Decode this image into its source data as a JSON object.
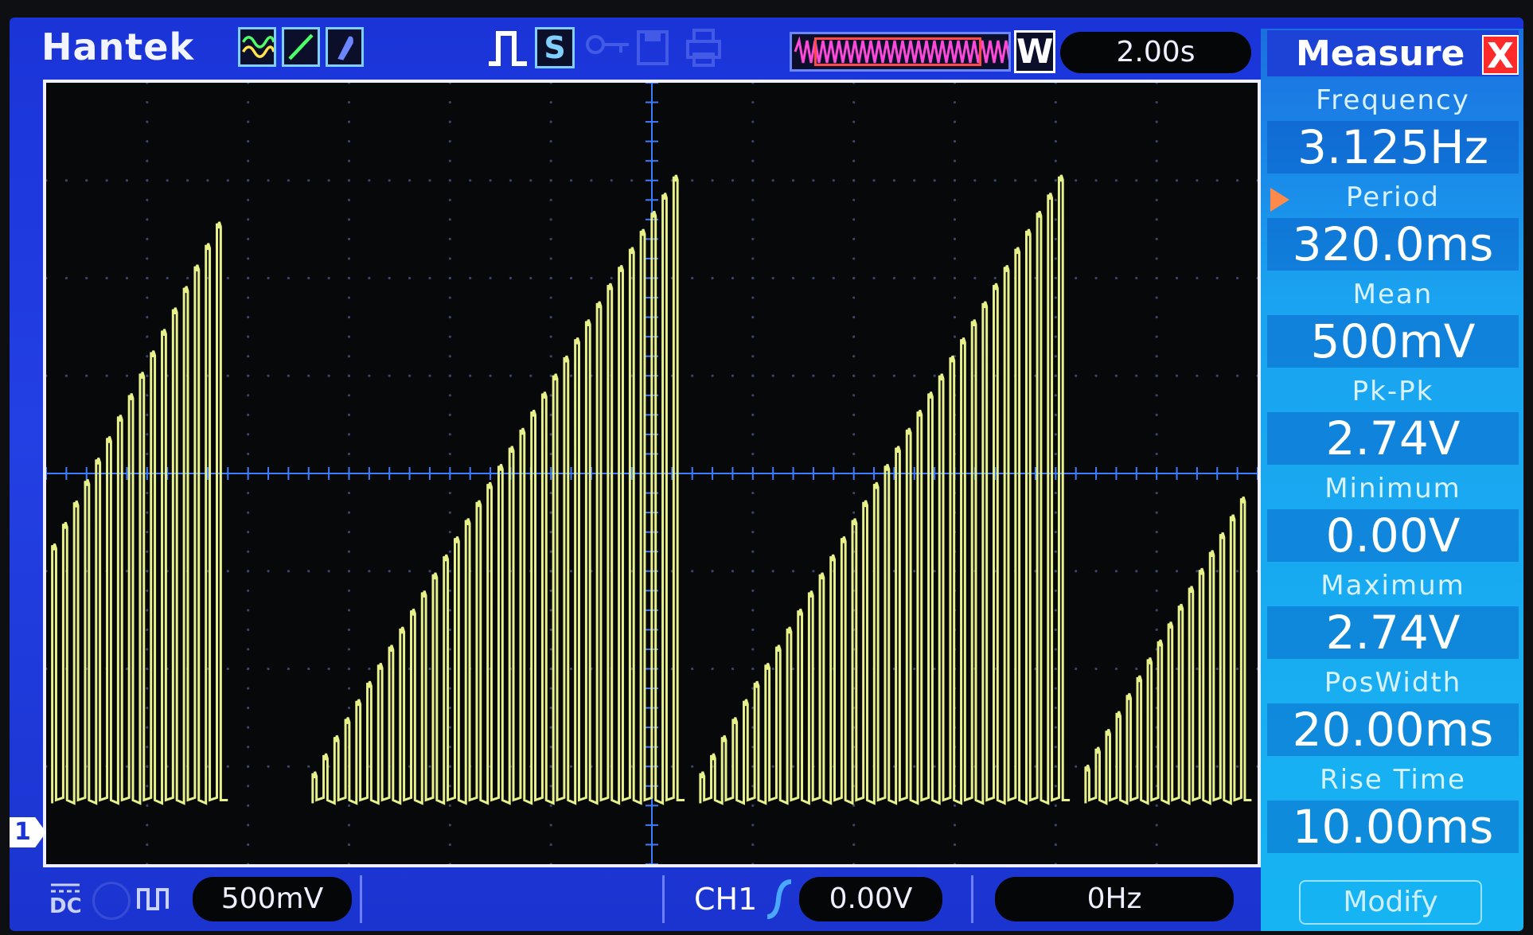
{
  "brand": "Hantek",
  "topbar": {
    "s_label": "S",
    "w_label": "W",
    "timebase": "2.00s"
  },
  "icons": {
    "waveform": "sine-wave-icon",
    "cursor": "line-cursor-icon",
    "probe": "probe-icon",
    "trigger": "pulse-trigger-icon",
    "key": "key-icon",
    "save": "save-icon",
    "print": "print-icon"
  },
  "colors": {
    "screen": "#2340e4",
    "trace": "#e8f08a",
    "grid": "#3a4466",
    "axis": "#3d7cff",
    "close": "#ff2a2a"
  },
  "measure": {
    "title": "Measure",
    "close_label": "X",
    "items": [
      {
        "label": "Frequency",
        "value": "3.125Hz"
      },
      {
        "label": "Period",
        "value": "320.0ms"
      },
      {
        "label": "Mean",
        "value": "500mV"
      },
      {
        "label": "Pk-Pk",
        "value": "2.74V"
      },
      {
        "label": "Minimum",
        "value": "0.00V"
      },
      {
        "label": "Maximum",
        "value": "2.74V"
      },
      {
        "label": "PosWidth",
        "value": "20.00ms"
      },
      {
        "label": "Rise Time",
        "value": "10.00ms"
      }
    ],
    "modify_label": "Modify"
  },
  "channel_marker": "1",
  "bottombar": {
    "coupling": "DC",
    "volts_div": "500mV",
    "channel": "CH1",
    "trigger_level": "0.00V",
    "trigger_freq": "0Hz"
  },
  "waveform": {
    "bursts": [
      {
        "start": 0.005,
        "end": 0.15,
        "pulses": 16,
        "min_level": 0.38,
        "max_level": 0.86
      },
      {
        "start": 0.22,
        "end": 0.527,
        "pulses": 34,
        "min_level": 0.04,
        "max_level": 0.93
      },
      {
        "start": 0.54,
        "end": 0.845,
        "pulses": 34,
        "min_level": 0.04,
        "max_level": 0.93
      },
      {
        "start": 0.858,
        "end": 0.995,
        "pulses": 16,
        "min_level": 0.05,
        "max_level": 0.45
      }
    ]
  }
}
